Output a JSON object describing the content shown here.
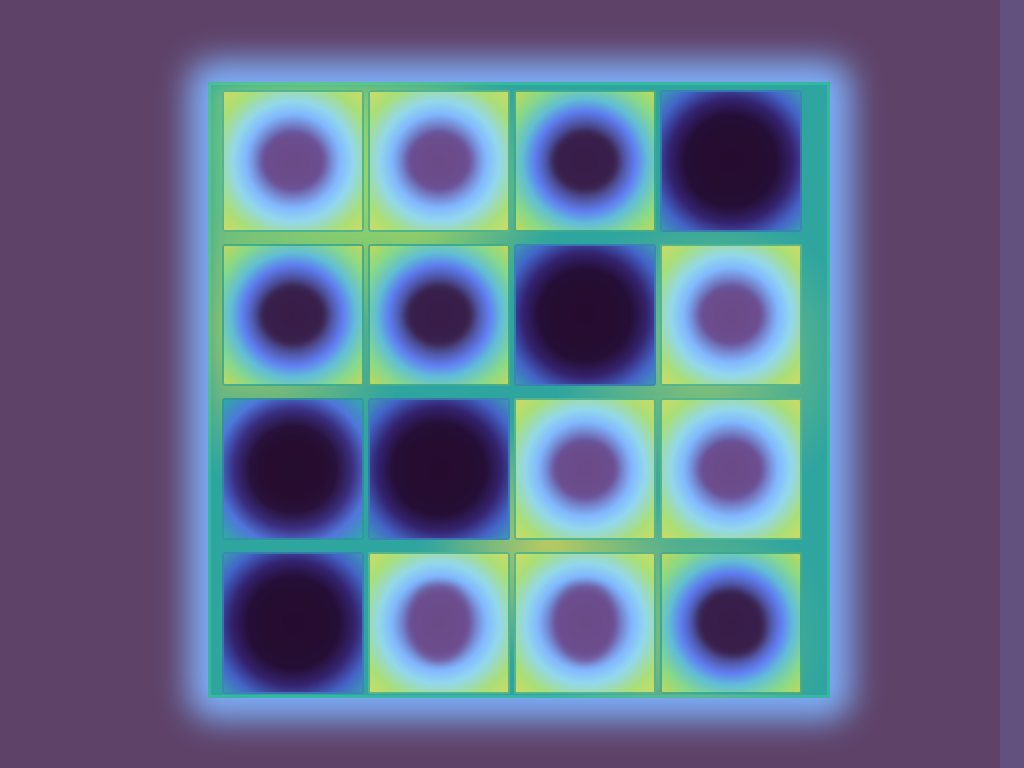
{
  "board": {
    "colors": {
      "background": "#5e4268",
      "glow": "#7fb4ff",
      "frame": "#2fa5a0",
      "light_tile": "#a9df77",
      "dark_tile": "#220d30"
    },
    "rows": [
      [
        {
          "name": "tile-1-1",
          "variant": "light",
          "shape": "oval"
        },
        {
          "name": "tile-1-2",
          "variant": "light",
          "shape": "oval"
        },
        {
          "name": "tile-1-3",
          "variant": "medium",
          "shape": "round"
        },
        {
          "name": "tile-1-4",
          "variant": "darker",
          "shape": "square"
        }
      ],
      [
        {
          "name": "tile-2-1",
          "variant": "medium",
          "shape": "oval"
        },
        {
          "name": "tile-2-2",
          "variant": "medium",
          "shape": "round"
        },
        {
          "name": "tile-2-3",
          "variant": "darker",
          "shape": "square"
        },
        {
          "name": "tile-2-4",
          "variant": "light",
          "shape": "round"
        }
      ],
      [
        {
          "name": "tile-3-1",
          "variant": "dark",
          "shape": "round"
        },
        {
          "name": "tile-3-2",
          "variant": "darker",
          "shape": "square"
        },
        {
          "name": "tile-3-3",
          "variant": "light",
          "shape": "oval"
        },
        {
          "name": "tile-3-4",
          "variant": "light",
          "shape": "oval"
        }
      ],
      [
        {
          "name": "tile-4-1",
          "variant": "darker",
          "shape": "square"
        },
        {
          "name": "tile-4-2",
          "variant": "light",
          "shape": "flask"
        },
        {
          "name": "tile-4-3",
          "variant": "light",
          "shape": "flask"
        },
        {
          "name": "tile-4-4",
          "variant": "medium",
          "shape": "lobed"
        }
      ]
    ]
  }
}
